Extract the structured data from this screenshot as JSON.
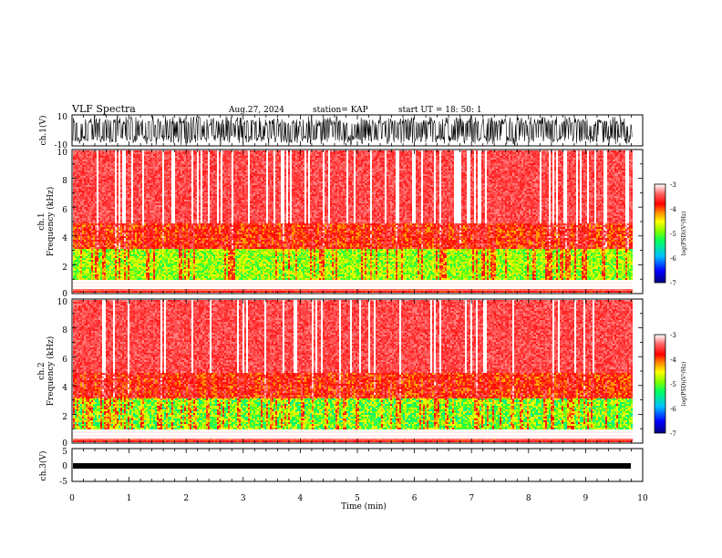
{
  "header": {
    "title": "VLF Spectra",
    "date": "Aug.27, 2024",
    "station": "station= KAP",
    "start": "start  UT  =   18: 50: 1"
  },
  "chart_data": [
    {
      "type": "line",
      "id": "ch1-waveform",
      "ylabel": "ch.1(V)",
      "ylim": [
        -10,
        10
      ],
      "ytick_labels": [
        "10",
        "-10"
      ],
      "xlim": [
        0,
        10
      ],
      "data_range_min": [
        0,
        9.82
      ],
      "description_values": {
        "signal_min": -10,
        "signal_max": 10
      }
    },
    {
      "type": "heatmap",
      "id": "ch1-spectrogram",
      "ylabel_top": "ch.1",
      "ylabel": "Frequency  (kHz)",
      "ylim": [
        0,
        10
      ],
      "ytick_labels": [
        "0",
        "2",
        "4",
        "6",
        "8",
        "10"
      ],
      "xlim": [
        0,
        10
      ],
      "colorbar": {
        "label": "log(PSD)(V²/Hz)",
        "range": [
          -7,
          -3
        ],
        "tick_labels": [
          "-3",
          "-4",
          "-5",
          "-6",
          "-7"
        ]
      }
    },
    {
      "type": "heatmap",
      "id": "ch2-spectrogram",
      "ylabel_top": "ch.2",
      "ylabel": "Frequency  (kHz)",
      "ylim": [
        0,
        10
      ],
      "ytick_labels": [
        "0",
        "2",
        "4",
        "6",
        "8",
        "10"
      ],
      "xlim": [
        0,
        10
      ],
      "colorbar": {
        "label": "log(PSD)(V²/Hz)",
        "range": [
          -7,
          -3
        ],
        "tick_labels": [
          "-3",
          "-4",
          "-5",
          "-6",
          "-7"
        ]
      }
    },
    {
      "type": "line",
      "id": "ch3-waveform",
      "ylabel": "ch.3(V)",
      "ylim": [
        -5,
        5
      ],
      "ytick_labels": [
        "5",
        "0",
        "-5"
      ],
      "xlim": [
        0,
        10
      ],
      "xlabel": "Time  (min)",
      "xtick_labels": [
        "0",
        "1",
        "2",
        "3",
        "4",
        "5",
        "6",
        "7",
        "8",
        "9",
        "10"
      ]
    }
  ]
}
